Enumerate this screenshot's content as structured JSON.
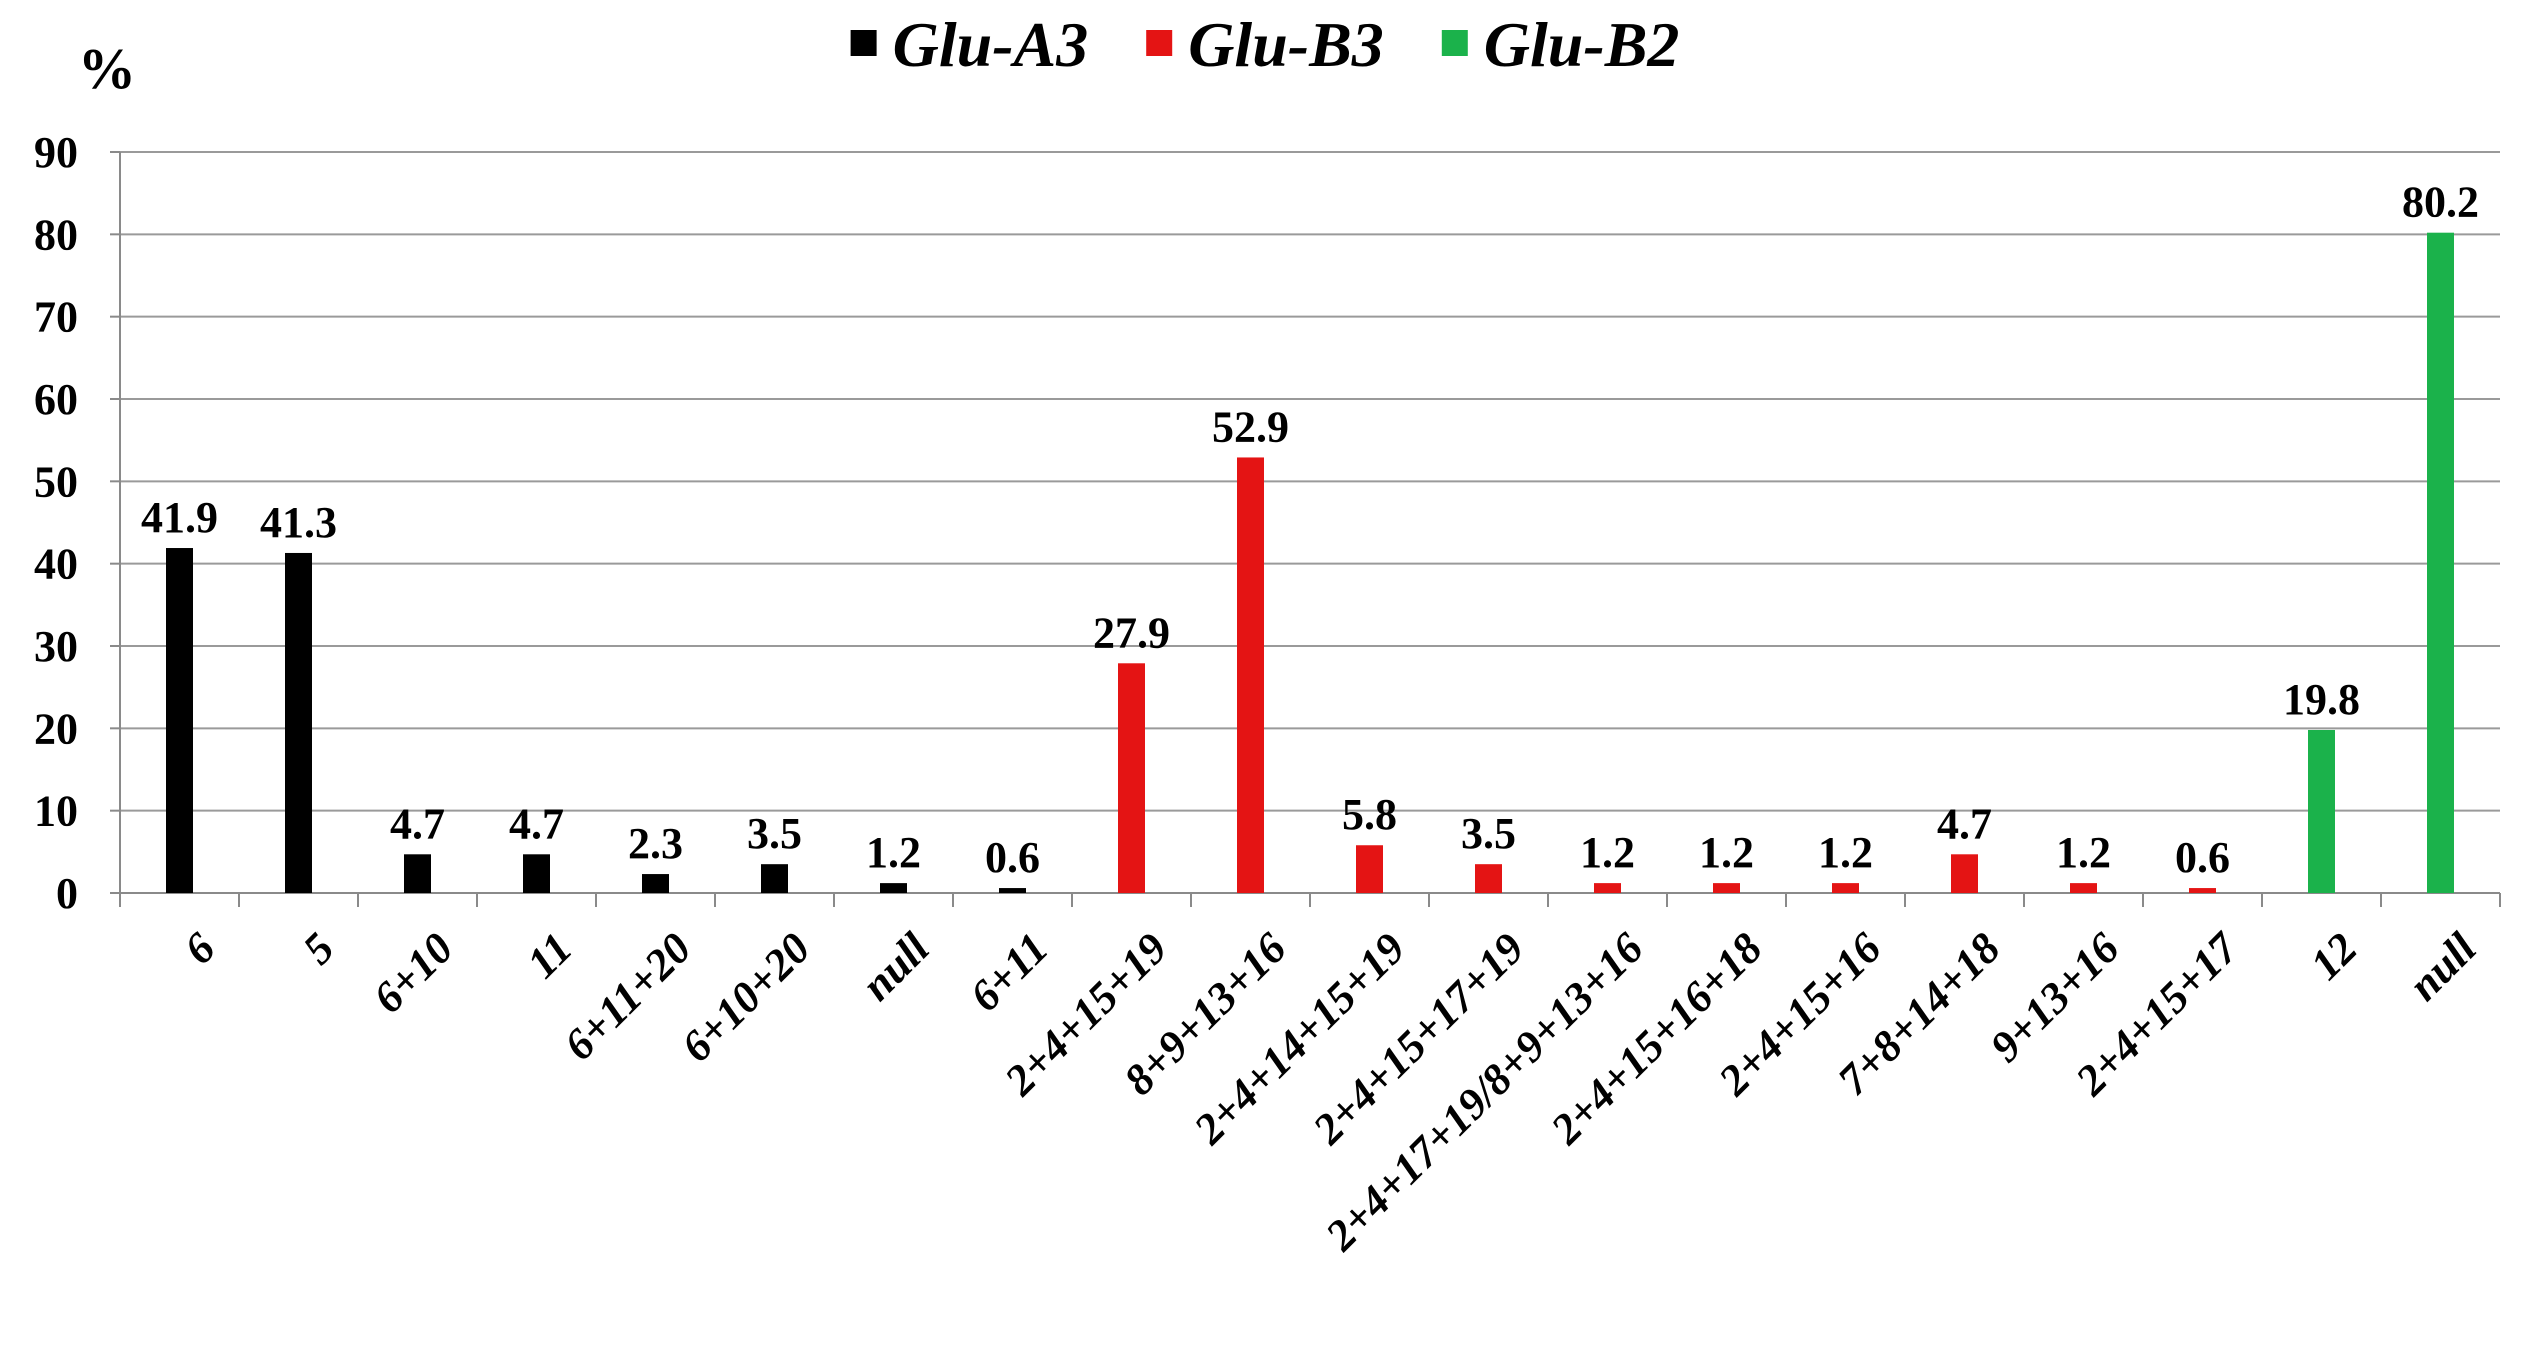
{
  "chart_data": {
    "type": "bar",
    "ylabel": "%",
    "ylim": [
      0,
      90
    ],
    "yticks": [
      0,
      10,
      20,
      30,
      40,
      50,
      60,
      70,
      80,
      90
    ],
    "grid": "horizontal",
    "legend_position": "top",
    "legend": [
      {
        "name": "Glu-A3",
        "color": "#000000"
      },
      {
        "name": "Glu-B3",
        "color": "#e41414"
      },
      {
        "name": "Glu-B2",
        "color": "#1bb24b"
      }
    ],
    "categories": [
      "6",
      "5",
      "6+10",
      "11",
      "6+11+20",
      "6+10+20",
      "null",
      "6+11",
      "2+4+15+19",
      "8+9+13+16",
      "2+4+14+15+19",
      "2+4+15+17+19",
      "2+4+17+19/8+9+13+16",
      "2+4+15+16+18",
      "2+4+15+16",
      "7+8+14+18",
      "9+13+16",
      "2+4+15+17",
      "12",
      "null"
    ],
    "values": [
      41.9,
      41.3,
      4.7,
      4.7,
      2.3,
      3.5,
      1.2,
      0.6,
      27.9,
      52.9,
      5.8,
      3.5,
      1.2,
      1.2,
      1.2,
      4.7,
      1.2,
      0.6,
      19.8,
      80.2
    ],
    "value_labels": [
      "41.9",
      "41.3",
      "4.7",
      "4.7",
      "2.3",
      "3.5",
      "1.2",
      "0.6",
      "27.9",
      "52.9",
      "5.8",
      "3.5",
      "1.2",
      "1.2",
      "1.2",
      "4.7",
      "1.2",
      "0.6",
      "19.8",
      "80.2"
    ],
    "bar_colors": [
      "#000000",
      "#000000",
      "#000000",
      "#000000",
      "#000000",
      "#000000",
      "#000000",
      "#000000",
      "#e41414",
      "#e41414",
      "#e41414",
      "#e41414",
      "#e41414",
      "#e41414",
      "#e41414",
      "#e41414",
      "#e41414",
      "#e41414",
      "#1bb24b",
      "#1bb24b"
    ]
  }
}
